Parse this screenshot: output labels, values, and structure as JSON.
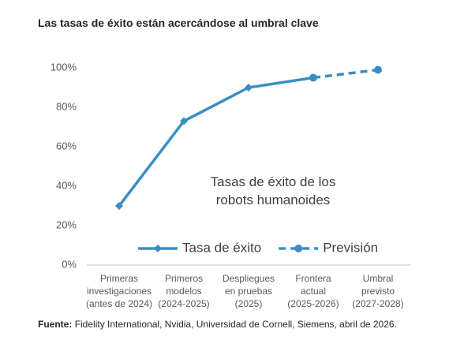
{
  "chart_data": {
    "type": "line",
    "title": "Las tasas de éxito están acercándose al umbral clave",
    "categories": [
      "Primeras\ninvestigaciones\n(antes de 2024)",
      "Primeros\nmodelos\n(2024-2025)",
      "Despliegues\nen pruebas\n(2025)",
      "Frontera\nactual\n(2025-2026)",
      "Umbral\nprevisto\n(2027-2028)"
    ],
    "series": [
      {
        "name": "Tasa de éxito",
        "color": "#3a8dc4",
        "dashed": false,
        "marker": "diamond",
        "values": [
          30,
          73,
          90,
          95,
          null
        ]
      },
      {
        "name": "Previsión",
        "color": "#3a8dc4",
        "dashed": true,
        "marker": "circle",
        "values": [
          null,
          null,
          null,
          95,
          99
        ]
      }
    ],
    "ylim": [
      0,
      100
    ],
    "yticks": [
      {
        "value": 0,
        "label": "0%"
      },
      {
        "value": 20,
        "label": "20%"
      },
      {
        "value": 40,
        "label": "40%"
      },
      {
        "value": 60,
        "label": "60%"
      },
      {
        "value": 80,
        "label": "80%"
      },
      {
        "value": 100,
        "label": "100%"
      }
    ],
    "grid": false,
    "annotation": [
      "Tasas de éxito de los",
      "robots humanoides"
    ],
    "source_label": "Fuente:",
    "source": "Fidelity International, Nvidia, Universidad de Cornell, Siemens, abril de 2026."
  }
}
